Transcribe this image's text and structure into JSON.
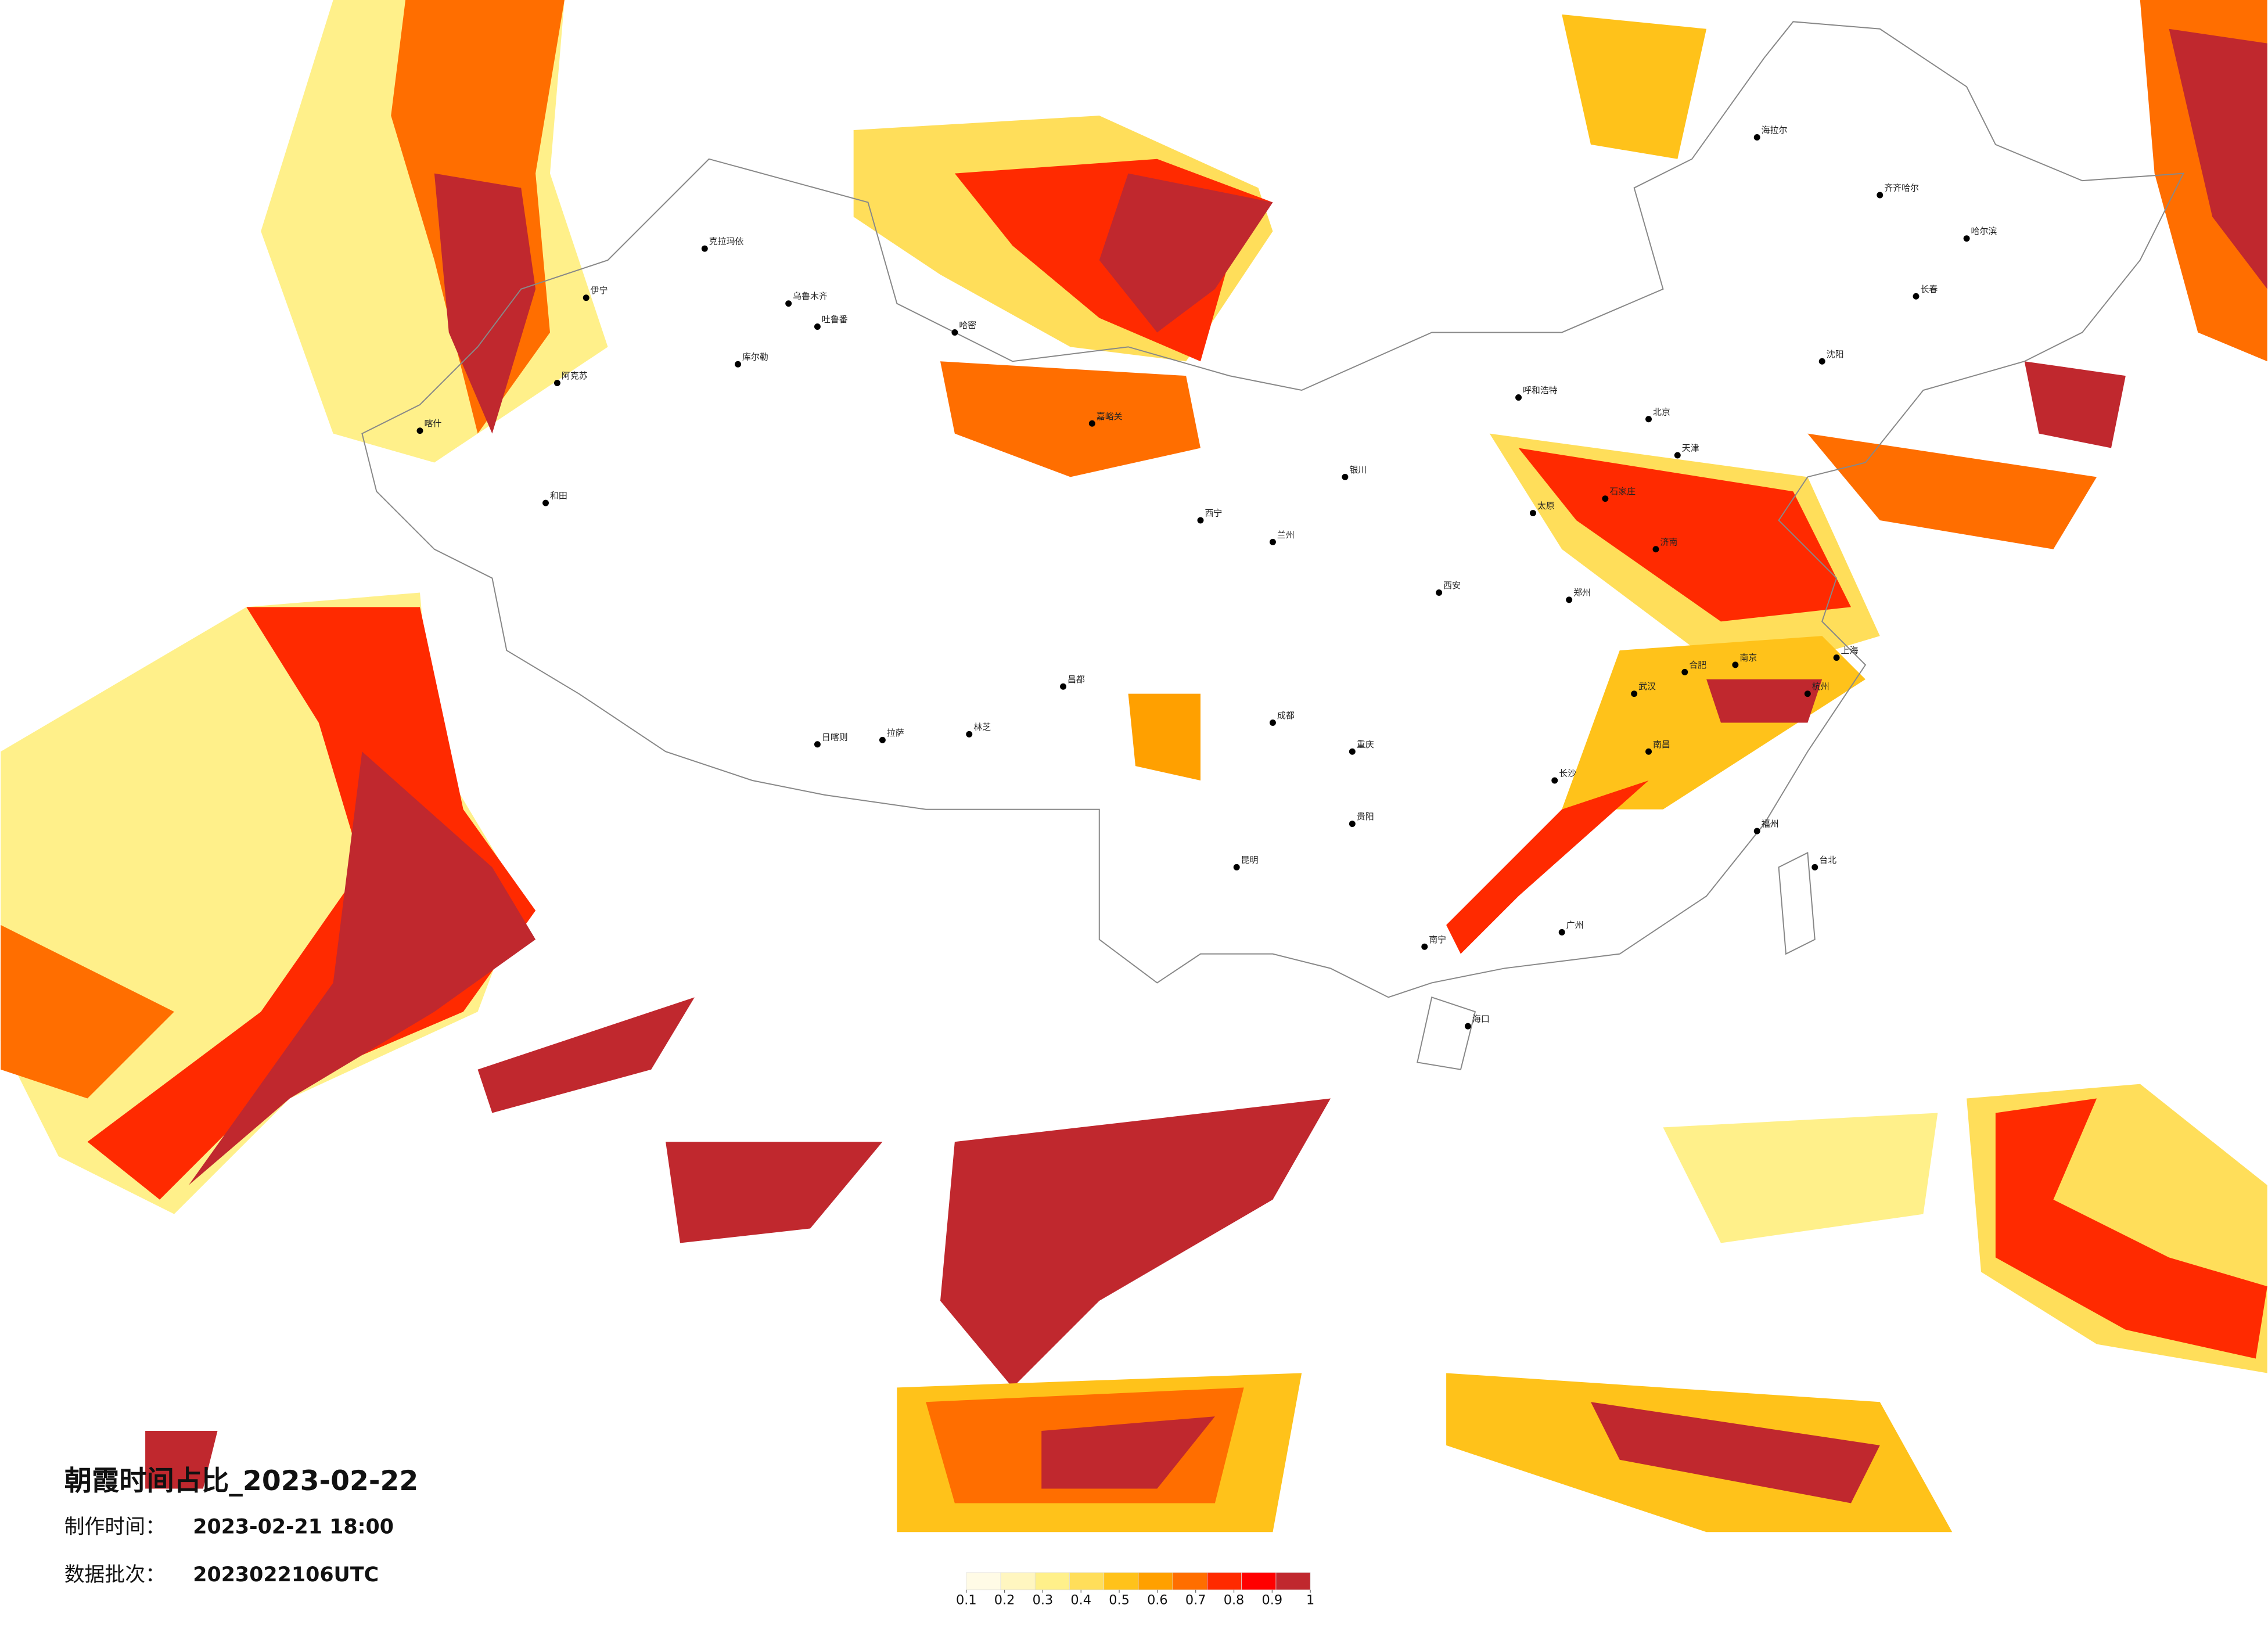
{
  "title": "朝霞时间占比_2023-02-22",
  "production_time": {
    "label": "制作时间：",
    "value": "2023-02-21 18:00"
  },
  "data_batch": {
    "label": "数据批次：",
    "value": "2023022106UTC"
  },
  "colorbar": {
    "colors": [
      "#fffbe6",
      "#fff6c0",
      "#fff08a",
      "#ffde5a",
      "#ffc21a",
      "#ffa000",
      "#ff6e00",
      "#ff2a00",
      "#ff0000",
      "#c0282e"
    ],
    "ticks": [
      0.1,
      0.2,
      0.3,
      0.4,
      0.5,
      0.6,
      0.7,
      0.8,
      0.9,
      1
    ],
    "range": [
      0.1,
      1
    ]
  },
  "cities": [
    "克拉玛依",
    "乌鲁木齐",
    "吐鲁番",
    "哈密",
    "库尔勒",
    "阿克苏",
    "喀什",
    "和田",
    "伊宁",
    "嘉峪关",
    "西宁",
    "兰州",
    "拉萨",
    "日喀则",
    "林芝",
    "昌都",
    "成都",
    "重庆",
    "昆明",
    "贵阳",
    "南宁",
    "海口",
    "广州",
    "长沙",
    "武汉",
    "南昌",
    "福州",
    "杭州",
    "上海",
    "南京",
    "合肥",
    "郑州",
    "济南",
    "北京",
    "天津",
    "石家庄",
    "太原",
    "呼和浩特",
    "西安",
    "银川",
    "沈阳",
    "长春",
    "哈尔滨",
    "齐齐哈尔",
    "海拉尔",
    "台北"
  ]
}
